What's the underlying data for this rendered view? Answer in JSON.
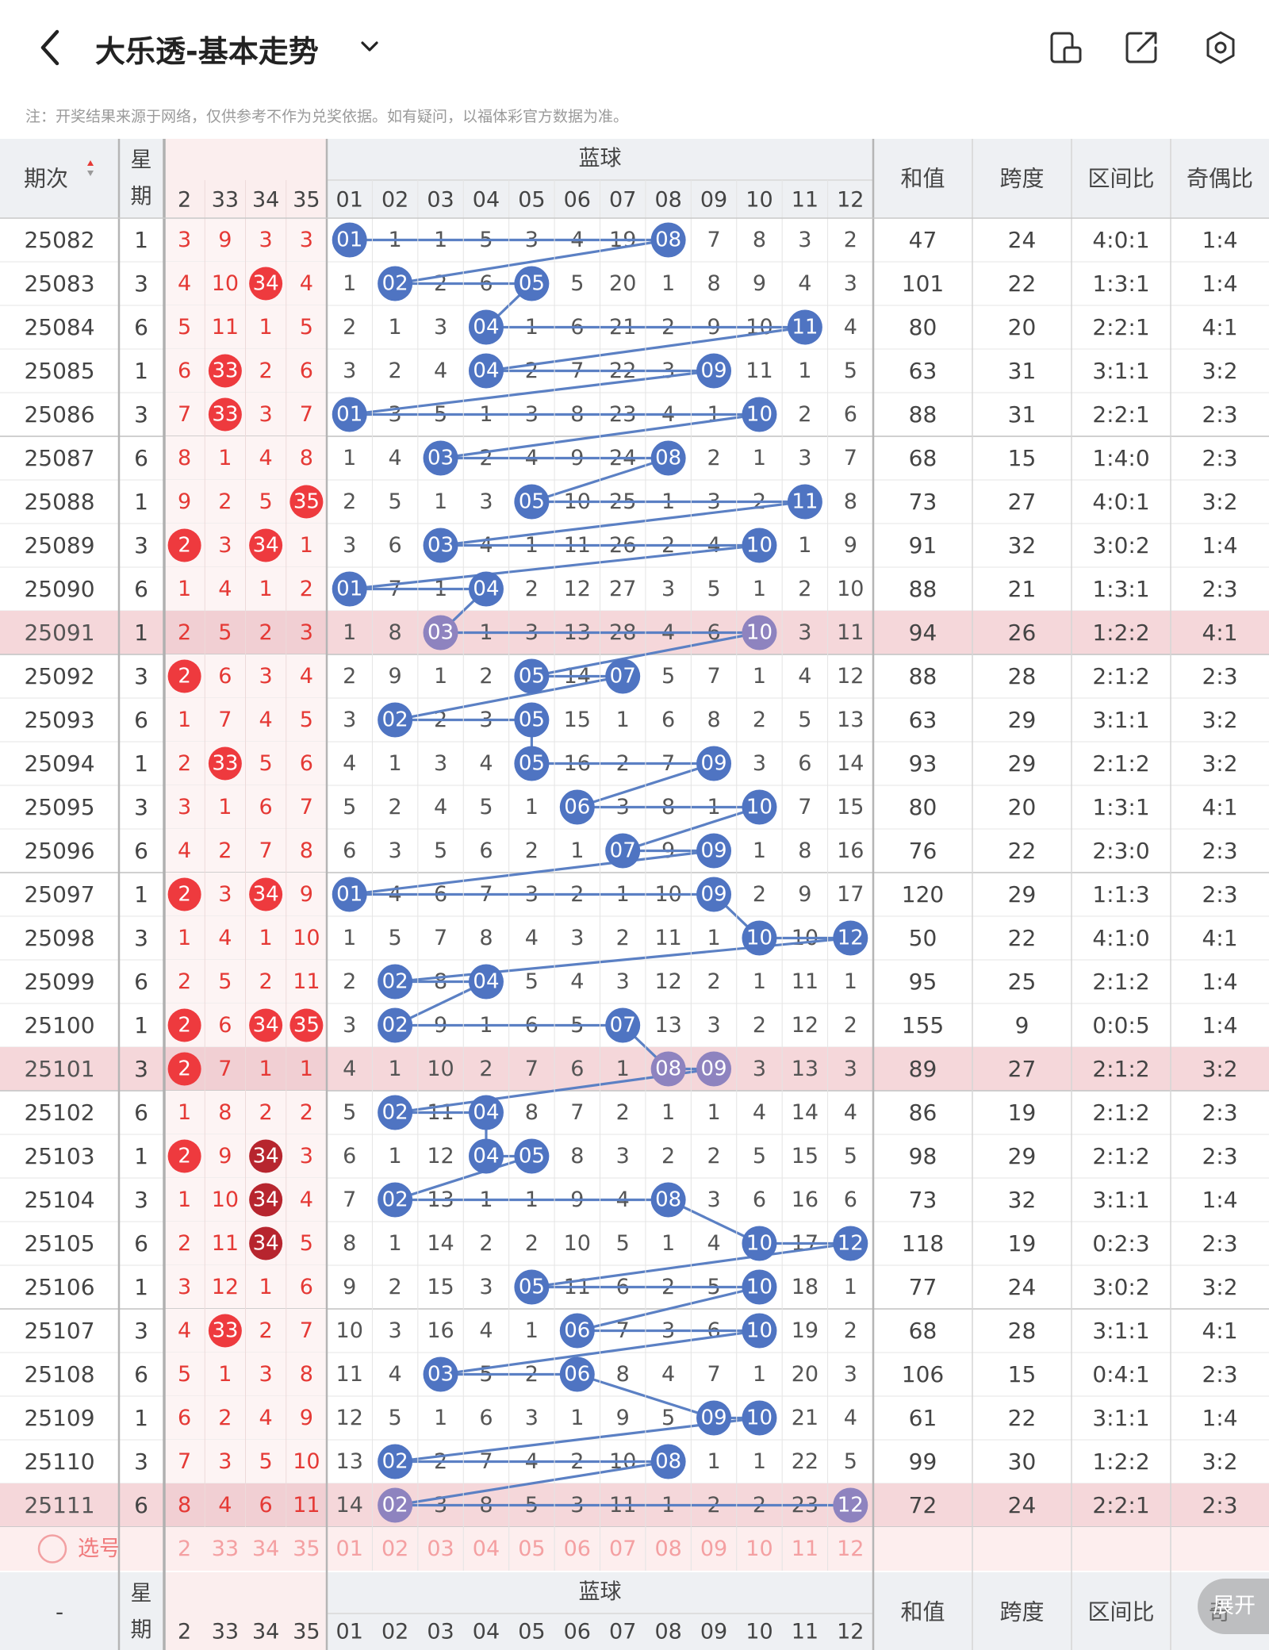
{
  "header": {
    "title": "大乐透-基本走势",
    "notice": "注：开奖结果来源于网络，仅供参考不作为兑奖依据。如有疑问，以福体彩官方数据为准。",
    "icons": [
      "back-icon",
      "chevron-down-icon",
      "phone-layout-icon",
      "share-icon",
      "settings-icon"
    ]
  },
  "table": {
    "col_issue": "期次",
    "col_week": "星期",
    "front_cols": [
      "2",
      "33",
      "34",
      "35"
    ],
    "blue_title": "蓝球",
    "blue_cols": [
      "01",
      "02",
      "03",
      "04",
      "05",
      "06",
      "07",
      "08",
      "09",
      "10",
      "11",
      "12"
    ],
    "stat_cols": [
      "和值",
      "跨度",
      "区间比",
      "奇偶比"
    ],
    "select_label": "选号",
    "footer_issue": "-",
    "footer_stat_cols": [
      "和值",
      "跨度",
      "区间比",
      "奇"
    ],
    "expand_label": "展开"
  },
  "rows": [
    {
      "issue": "25082",
      "week": "1",
      "front": [
        "3",
        "9",
        "3",
        "3"
      ],
      "fhit": [
        null,
        null,
        null,
        null
      ],
      "blue": [
        "01",
        "1",
        "1",
        "5",
        "3",
        "4",
        "19",
        "08",
        "7",
        "8",
        "3",
        "2"
      ],
      "hits": [
        1,
        8
      ],
      "sum": "47",
      "span": "24",
      "zone": "4:0:1",
      "oe": "1:4"
    },
    {
      "issue": "25083",
      "week": "3",
      "front": [
        "4",
        "10",
        "34",
        "4"
      ],
      "fhit": [
        null,
        null,
        "r",
        null
      ],
      "blue": [
        "1",
        "02",
        "2",
        "6",
        "05",
        "5",
        "20",
        "1",
        "8",
        "9",
        "4",
        "3"
      ],
      "hits": [
        2,
        5
      ],
      "sum": "101",
      "span": "22",
      "zone": "1:3:1",
      "oe": "1:4"
    },
    {
      "issue": "25084",
      "week": "6",
      "front": [
        "5",
        "11",
        "1",
        "5"
      ],
      "fhit": [
        null,
        null,
        null,
        null
      ],
      "blue": [
        "2",
        "1",
        "3",
        "04",
        "1",
        "6",
        "21",
        "2",
        "9",
        "10",
        "11",
        "4"
      ],
      "hits": [
        4,
        11
      ],
      "sum": "80",
      "span": "20",
      "zone": "2:2:1",
      "oe": "4:1"
    },
    {
      "issue": "25085",
      "week": "1",
      "front": [
        "6",
        "33",
        "2",
        "6"
      ],
      "fhit": [
        null,
        "r",
        null,
        null
      ],
      "blue": [
        "3",
        "2",
        "4",
        "04",
        "2",
        "7",
        "22",
        "3",
        "09",
        "11",
        "1",
        "5"
      ],
      "hits": [
        4,
        9
      ],
      "sum": "63",
      "span": "31",
      "zone": "3:1:1",
      "oe": "3:2"
    },
    {
      "issue": "25086",
      "week": "3",
      "front": [
        "7",
        "33",
        "3",
        "7"
      ],
      "fhit": [
        null,
        "r",
        null,
        null
      ],
      "blue": [
        "01",
        "3",
        "5",
        "1",
        "3",
        "8",
        "23",
        "4",
        "1",
        "10",
        "2",
        "6"
      ],
      "hits": [
        1,
        10
      ],
      "sum": "88",
      "span": "31",
      "zone": "2:2:1",
      "oe": "2:3"
    },
    {
      "issue": "25087",
      "week": "6",
      "front": [
        "8",
        "1",
        "4",
        "8"
      ],
      "fhit": [
        null,
        null,
        null,
        null
      ],
      "blue": [
        "1",
        "4",
        "03",
        "2",
        "4",
        "9",
        "24",
        "08",
        "2",
        "1",
        "3",
        "7"
      ],
      "hits": [
        3,
        8
      ],
      "sum": "68",
      "span": "15",
      "zone": "1:4:0",
      "oe": "2:3"
    },
    {
      "issue": "25088",
      "week": "1",
      "front": [
        "9",
        "2",
        "5",
        "35"
      ],
      "fhit": [
        null,
        null,
        null,
        "r"
      ],
      "blue": [
        "2",
        "5",
        "1",
        "3",
        "05",
        "10",
        "25",
        "1",
        "3",
        "2",
        "11",
        "8"
      ],
      "hits": [
        5,
        11
      ],
      "sum": "73",
      "span": "27",
      "zone": "4:0:1",
      "oe": "3:2"
    },
    {
      "issue": "25089",
      "week": "3",
      "front": [
        "2",
        "3",
        "34",
        "1"
      ],
      "fhit": [
        "r",
        null,
        "r",
        null
      ],
      "blue": [
        "3",
        "6",
        "03",
        "4",
        "1",
        "11",
        "26",
        "2",
        "4",
        "10",
        "1",
        "9"
      ],
      "hits": [
        3,
        10
      ],
      "sum": "91",
      "span": "32",
      "zone": "3:0:2",
      "oe": "1:4"
    },
    {
      "issue": "25090",
      "week": "6",
      "front": [
        "1",
        "4",
        "1",
        "2"
      ],
      "fhit": [
        null,
        null,
        null,
        null
      ],
      "blue": [
        "01",
        "7",
        "1",
        "04",
        "2",
        "12",
        "27",
        "3",
        "5",
        "1",
        "2",
        "10"
      ],
      "hits": [
        1,
        4
      ],
      "sum": "88",
      "span": "21",
      "zone": "1:3:1",
      "oe": "2:3"
    },
    {
      "issue": "25091",
      "week": "1",
      "front": [
        "2",
        "5",
        "2",
        "3"
      ],
      "fhit": [
        null,
        null,
        null,
        null
      ],
      "blue": [
        "1",
        "8",
        "03",
        "1",
        "3",
        "13",
        "28",
        "4",
        "6",
        "10",
        "3",
        "11"
      ],
      "hits": [
        3,
        10
      ],
      "sum": "94",
      "span": "26",
      "zone": "1:2:2",
      "oe": "4:1",
      "hl": true
    },
    {
      "issue": "25092",
      "week": "3",
      "front": [
        "2",
        "6",
        "3",
        "4"
      ],
      "fhit": [
        "r",
        null,
        null,
        null
      ],
      "blue": [
        "2",
        "9",
        "1",
        "2",
        "05",
        "14",
        "07",
        "5",
        "7",
        "1",
        "4",
        "12"
      ],
      "hits": [
        5,
        7
      ],
      "sum": "88",
      "span": "28",
      "zone": "2:1:2",
      "oe": "2:3"
    },
    {
      "issue": "25093",
      "week": "6",
      "front": [
        "1",
        "7",
        "4",
        "5"
      ],
      "fhit": [
        null,
        null,
        null,
        null
      ],
      "blue": [
        "3",
        "02",
        "2",
        "3",
        "05",
        "15",
        "1",
        "6",
        "8",
        "2",
        "5",
        "13"
      ],
      "hits": [
        2,
        5
      ],
      "sum": "63",
      "span": "29",
      "zone": "3:1:1",
      "oe": "3:2"
    },
    {
      "issue": "25094",
      "week": "1",
      "front": [
        "2",
        "33",
        "5",
        "6"
      ],
      "fhit": [
        null,
        "r",
        null,
        null
      ],
      "blue": [
        "4",
        "1",
        "3",
        "4",
        "05",
        "16",
        "2",
        "7",
        "09",
        "3",
        "6",
        "14"
      ],
      "hits": [
        5,
        9
      ],
      "sum": "93",
      "span": "29",
      "zone": "2:1:2",
      "oe": "3:2"
    },
    {
      "issue": "25095",
      "week": "3",
      "front": [
        "3",
        "1",
        "6",
        "7"
      ],
      "fhit": [
        null,
        null,
        null,
        null
      ],
      "blue": [
        "5",
        "2",
        "4",
        "5",
        "1",
        "06",
        "3",
        "8",
        "1",
        "10",
        "7",
        "15"
      ],
      "hits": [
        6,
        10
      ],
      "sum": "80",
      "span": "20",
      "zone": "1:3:1",
      "oe": "4:1"
    },
    {
      "issue": "25096",
      "week": "6",
      "front": [
        "4",
        "2",
        "7",
        "8"
      ],
      "fhit": [
        null,
        null,
        null,
        null
      ],
      "blue": [
        "6",
        "3",
        "5",
        "6",
        "2",
        "1",
        "07",
        "9",
        "09",
        "1",
        "8",
        "16"
      ],
      "hits": [
        7,
        9
      ],
      "sum": "76",
      "span": "22",
      "zone": "2:3:0",
      "oe": "2:3"
    },
    {
      "issue": "25097",
      "week": "1",
      "front": [
        "2",
        "3",
        "34",
        "9"
      ],
      "fhit": [
        "r",
        null,
        "r",
        null
      ],
      "blue": [
        "01",
        "4",
        "6",
        "7",
        "3",
        "2",
        "1",
        "10",
        "09",
        "2",
        "9",
        "17"
      ],
      "hits": [
        1,
        9
      ],
      "sum": "120",
      "span": "29",
      "zone": "1:1:3",
      "oe": "2:3"
    },
    {
      "issue": "25098",
      "week": "3",
      "front": [
        "1",
        "4",
        "1",
        "10"
      ],
      "fhit": [
        null,
        null,
        null,
        null
      ],
      "blue": [
        "1",
        "5",
        "7",
        "8",
        "4",
        "3",
        "2",
        "11",
        "1",
        "10",
        "10",
        "12"
      ],
      "hits": [
        10,
        12
      ],
      "sum": "50",
      "span": "22",
      "zone": "4:1:0",
      "oe": "4:1"
    },
    {
      "issue": "25099",
      "week": "6",
      "front": [
        "2",
        "5",
        "2",
        "11"
      ],
      "fhit": [
        null,
        null,
        null,
        null
      ],
      "blue": [
        "2",
        "02",
        "8",
        "04",
        "5",
        "4",
        "3",
        "12",
        "2",
        "1",
        "11",
        "1"
      ],
      "hits": [
        2,
        4
      ],
      "sum": "95",
      "span": "25",
      "zone": "2:1:2",
      "oe": "1:4"
    },
    {
      "issue": "25100",
      "week": "1",
      "front": [
        "2",
        "6",
        "34",
        "35"
      ],
      "fhit": [
        "r",
        null,
        "r",
        "r"
      ],
      "blue": [
        "3",
        "02",
        "9",
        "1",
        "6",
        "5",
        "07",
        "13",
        "3",
        "2",
        "12",
        "2"
      ],
      "hits": [
        2,
        7
      ],
      "sum": "155",
      "span": "9",
      "zone": "0:0:5",
      "oe": "1:4"
    },
    {
      "issue": "25101",
      "week": "3",
      "front": [
        "2",
        "7",
        "1",
        "1"
      ],
      "fhit": [
        "r",
        null,
        null,
        null
      ],
      "blue": [
        "4",
        "1",
        "10",
        "2",
        "7",
        "6",
        "1",
        "08",
        "09",
        "3",
        "13",
        "3"
      ],
      "hits": [
        8,
        9
      ],
      "sum": "89",
      "span": "27",
      "zone": "2:1:2",
      "oe": "3:2",
      "hl": true
    },
    {
      "issue": "25102",
      "week": "6",
      "front": [
        "1",
        "8",
        "2",
        "2"
      ],
      "fhit": [
        null,
        null,
        null,
        null
      ],
      "blue": [
        "5",
        "02",
        "11",
        "04",
        "8",
        "7",
        "2",
        "1",
        "1",
        "4",
        "14",
        "4"
      ],
      "hits": [
        2,
        4
      ],
      "sum": "86",
      "span": "19",
      "zone": "2:1:2",
      "oe": "2:3"
    },
    {
      "issue": "25103",
      "week": "1",
      "front": [
        "2",
        "9",
        "34",
        "3"
      ],
      "fhit": [
        "r",
        null,
        "d",
        null
      ],
      "blue": [
        "6",
        "1",
        "12",
        "04",
        "05",
        "8",
        "3",
        "2",
        "2",
        "5",
        "15",
        "5"
      ],
      "hits": [
        4,
        5
      ],
      "sum": "98",
      "span": "29",
      "zone": "2:1:2",
      "oe": "2:3"
    },
    {
      "issue": "25104",
      "week": "3",
      "front": [
        "1",
        "10",
        "34",
        "4"
      ],
      "fhit": [
        null,
        null,
        "d",
        null
      ],
      "blue": [
        "7",
        "02",
        "13",
        "1",
        "1",
        "9",
        "4",
        "08",
        "3",
        "6",
        "16",
        "6"
      ],
      "hits": [
        2,
        8
      ],
      "sum": "73",
      "span": "32",
      "zone": "3:1:1",
      "oe": "1:4"
    },
    {
      "issue": "25105",
      "week": "6",
      "front": [
        "2",
        "11",
        "34",
        "5"
      ],
      "fhit": [
        null,
        null,
        "d",
        null
      ],
      "blue": [
        "8",
        "1",
        "14",
        "2",
        "2",
        "10",
        "5",
        "1",
        "4",
        "10",
        "17",
        "12"
      ],
      "hits": [
        10,
        12
      ],
      "sum": "118",
      "span": "19",
      "zone": "0:2:3",
      "oe": "2:3"
    },
    {
      "issue": "25106",
      "week": "1",
      "front": [
        "3",
        "12",
        "1",
        "6"
      ],
      "fhit": [
        null,
        null,
        null,
        null
      ],
      "blue": [
        "9",
        "2",
        "15",
        "3",
        "05",
        "11",
        "6",
        "2",
        "5",
        "10",
        "18",
        "1"
      ],
      "hits": [
        5,
        10
      ],
      "sum": "77",
      "span": "24",
      "zone": "3:0:2",
      "oe": "3:2"
    },
    {
      "issue": "25107",
      "week": "3",
      "front": [
        "4",
        "33",
        "2",
        "7"
      ],
      "fhit": [
        null,
        "r",
        null,
        null
      ],
      "blue": [
        "10",
        "3",
        "16",
        "4",
        "1",
        "06",
        "7",
        "3",
        "6",
        "10",
        "19",
        "2"
      ],
      "hits": [
        6,
        10
      ],
      "sum": "68",
      "span": "28",
      "zone": "3:1:1",
      "oe": "4:1"
    },
    {
      "issue": "25108",
      "week": "6",
      "front": [
        "5",
        "1",
        "3",
        "8"
      ],
      "fhit": [
        null,
        null,
        null,
        null
      ],
      "blue": [
        "11",
        "4",
        "03",
        "5",
        "2",
        "06",
        "8",
        "4",
        "7",
        "1",
        "20",
        "3"
      ],
      "hits": [
        3,
        6
      ],
      "sum": "106",
      "span": "15",
      "zone": "0:4:1",
      "oe": "2:3"
    },
    {
      "issue": "25109",
      "week": "1",
      "front": [
        "6",
        "2",
        "4",
        "9"
      ],
      "fhit": [
        null,
        null,
        null,
        null
      ],
      "blue": [
        "12",
        "5",
        "1",
        "6",
        "3",
        "1",
        "9",
        "5",
        "09",
        "10",
        "21",
        "4"
      ],
      "hits": [
        9,
        10
      ],
      "sum": "61",
      "span": "22",
      "zone": "3:1:1",
      "oe": "1:4"
    },
    {
      "issue": "25110",
      "week": "3",
      "front": [
        "7",
        "3",
        "5",
        "10"
      ],
      "fhit": [
        null,
        null,
        null,
        null
      ],
      "blue": [
        "13",
        "02",
        "2",
        "7",
        "4",
        "2",
        "10",
        "08",
        "1",
        "1",
        "22",
        "5"
      ],
      "hits": [
        2,
        8
      ],
      "sum": "99",
      "span": "30",
      "zone": "1:2:2",
      "oe": "3:2"
    },
    {
      "issue": "25111",
      "week": "6",
      "front": [
        "8",
        "4",
        "6",
        "11"
      ],
      "fhit": [
        null,
        null,
        null,
        null
      ],
      "blue": [
        "14",
        "02",
        "3",
        "8",
        "5",
        "3",
        "11",
        "1",
        "2",
        "2",
        "23",
        "12"
      ],
      "hits": [
        2,
        12
      ],
      "sum": "72",
      "span": "24",
      "zone": "2:2:1",
      "oe": "2:3",
      "hl": true
    }
  ]
}
